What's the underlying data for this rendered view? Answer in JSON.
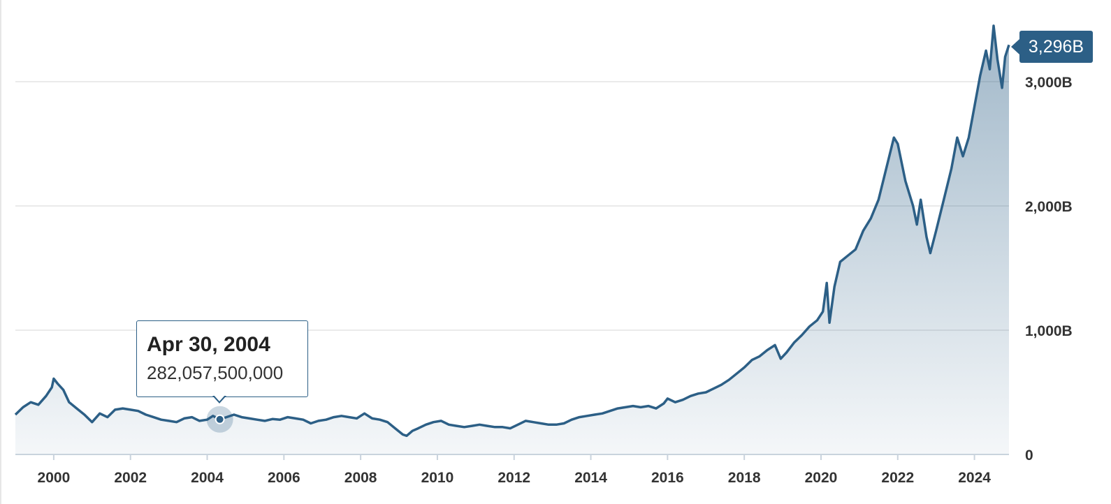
{
  "chart_data": {
    "type": "area",
    "x_unit": "year",
    "xlim": [
      1999.0,
      2024.9
    ],
    "ylim": [
      0,
      3400
    ],
    "y_unit": "B",
    "y_ticks": [
      {
        "value": 0,
        "label": "0"
      },
      {
        "value": 1000,
        "label": "1,000B"
      },
      {
        "value": 2000,
        "label": "2,000B"
      },
      {
        "value": 3000,
        "label": "3,000B"
      }
    ],
    "x_ticks": [
      {
        "value": 2000,
        "label": "2000"
      },
      {
        "value": 2002,
        "label": "2002"
      },
      {
        "value": 2004,
        "label": "2004"
      },
      {
        "value": 2006,
        "label": "2006"
      },
      {
        "value": 2008,
        "label": "2008"
      },
      {
        "value": 2010,
        "label": "2010"
      },
      {
        "value": 2012,
        "label": "2012"
      },
      {
        "value": 2014,
        "label": "2014"
      },
      {
        "value": 2016,
        "label": "2016"
      },
      {
        "value": 2018,
        "label": "2018"
      },
      {
        "value": 2020,
        "label": "2020"
      },
      {
        "value": 2022,
        "label": "2022"
      },
      {
        "value": 2024,
        "label": "2024"
      }
    ],
    "grid": true,
    "series": [
      {
        "color": "#2c5f86",
        "fill_color": "#2c5f86",
        "points": [
          [
            1999.0,
            320
          ],
          [
            1999.2,
            380
          ],
          [
            1999.4,
            420
          ],
          [
            1999.6,
            400
          ],
          [
            1999.8,
            470
          ],
          [
            1999.95,
            540
          ],
          [
            2000.0,
            610
          ],
          [
            2000.1,
            570
          ],
          [
            2000.25,
            520
          ],
          [
            2000.4,
            420
          ],
          [
            2000.6,
            370
          ],
          [
            2000.8,
            320
          ],
          [
            2001.0,
            260
          ],
          [
            2001.2,
            330
          ],
          [
            2001.4,
            300
          ],
          [
            2001.6,
            360
          ],
          [
            2001.8,
            370
          ],
          [
            2002.0,
            360
          ],
          [
            2002.2,
            350
          ],
          [
            2002.4,
            320
          ],
          [
            2002.6,
            300
          ],
          [
            2002.8,
            280
          ],
          [
            2003.0,
            270
          ],
          [
            2003.2,
            260
          ],
          [
            2003.4,
            290
          ],
          [
            2003.6,
            300
          ],
          [
            2003.8,
            270
          ],
          [
            2004.0,
            280
          ],
          [
            2004.15,
            310
          ],
          [
            2004.33,
            282.0575
          ],
          [
            2004.5,
            300
          ],
          [
            2004.7,
            320
          ],
          [
            2004.9,
            300
          ],
          [
            2005.1,
            290
          ],
          [
            2005.3,
            280
          ],
          [
            2005.5,
            270
          ],
          [
            2005.7,
            285
          ],
          [
            2005.9,
            280
          ],
          [
            2006.1,
            300
          ],
          [
            2006.3,
            290
          ],
          [
            2006.5,
            280
          ],
          [
            2006.7,
            250
          ],
          [
            2006.9,
            270
          ],
          [
            2007.1,
            280
          ],
          [
            2007.3,
            300
          ],
          [
            2007.5,
            310
          ],
          [
            2007.7,
            300
          ],
          [
            2007.9,
            290
          ],
          [
            2008.0,
            310
          ],
          [
            2008.1,
            330
          ],
          [
            2008.3,
            290
          ],
          [
            2008.5,
            280
          ],
          [
            2008.7,
            260
          ],
          [
            2008.9,
            210
          ],
          [
            2009.1,
            160
          ],
          [
            2009.2,
            150
          ],
          [
            2009.35,
            190
          ],
          [
            2009.5,
            210
          ],
          [
            2009.7,
            240
          ],
          [
            2009.9,
            260
          ],
          [
            2010.1,
            270
          ],
          [
            2010.3,
            240
          ],
          [
            2010.5,
            230
          ],
          [
            2010.7,
            220
          ],
          [
            2010.9,
            230
          ],
          [
            2011.1,
            240
          ],
          [
            2011.3,
            230
          ],
          [
            2011.5,
            220
          ],
          [
            2011.7,
            220
          ],
          [
            2011.9,
            210
          ],
          [
            2012.1,
            240
          ],
          [
            2012.3,
            270
          ],
          [
            2012.5,
            260
          ],
          [
            2012.7,
            250
          ],
          [
            2012.9,
            240
          ],
          [
            2013.1,
            240
          ],
          [
            2013.3,
            250
          ],
          [
            2013.5,
            280
          ],
          [
            2013.7,
            300
          ],
          [
            2013.9,
            310
          ],
          [
            2014.1,
            320
          ],
          [
            2014.3,
            330
          ],
          [
            2014.5,
            350
          ],
          [
            2014.7,
            370
          ],
          [
            2014.9,
            380
          ],
          [
            2015.1,
            390
          ],
          [
            2015.3,
            380
          ],
          [
            2015.5,
            390
          ],
          [
            2015.7,
            370
          ],
          [
            2015.9,
            410
          ],
          [
            2016.0,
            450
          ],
          [
            2016.2,
            420
          ],
          [
            2016.4,
            440
          ],
          [
            2016.6,
            470
          ],
          [
            2016.8,
            490
          ],
          [
            2017.0,
            500
          ],
          [
            2017.2,
            530
          ],
          [
            2017.4,
            560
          ],
          [
            2017.6,
            600
          ],
          [
            2017.8,
            650
          ],
          [
            2018.0,
            700
          ],
          [
            2018.2,
            760
          ],
          [
            2018.4,
            790
          ],
          [
            2018.6,
            840
          ],
          [
            2018.8,
            880
          ],
          [
            2018.95,
            770
          ],
          [
            2019.1,
            820
          ],
          [
            2019.3,
            900
          ],
          [
            2019.5,
            960
          ],
          [
            2019.7,
            1030
          ],
          [
            2019.9,
            1080
          ],
          [
            2020.05,
            1150
          ],
          [
            2020.15,
            1380
          ],
          [
            2020.22,
            1060
          ],
          [
            2020.35,
            1350
          ],
          [
            2020.5,
            1550
          ],
          [
            2020.7,
            1600
          ],
          [
            2020.9,
            1650
          ],
          [
            2021.1,
            1800
          ],
          [
            2021.3,
            1900
          ],
          [
            2021.5,
            2050
          ],
          [
            2021.7,
            2300
          ],
          [
            2021.9,
            2550
          ],
          [
            2022.0,
            2500
          ],
          [
            2022.2,
            2200
          ],
          [
            2022.4,
            2000
          ],
          [
            2022.5,
            1850
          ],
          [
            2022.6,
            2050
          ],
          [
            2022.75,
            1750
          ],
          [
            2022.85,
            1620
          ],
          [
            2023.0,
            1800
          ],
          [
            2023.2,
            2050
          ],
          [
            2023.4,
            2300
          ],
          [
            2023.55,
            2550
          ],
          [
            2023.7,
            2400
          ],
          [
            2023.85,
            2550
          ],
          [
            2024.0,
            2800
          ],
          [
            2024.15,
            3050
          ],
          [
            2024.3,
            3250
          ],
          [
            2024.4,
            3100
          ],
          [
            2024.5,
            3450
          ],
          [
            2024.6,
            3180
          ],
          [
            2024.72,
            2950
          ],
          [
            2024.8,
            3200
          ],
          [
            2024.9,
            3296
          ]
        ]
      }
    ],
    "tooltip": {
      "x": 2004.33,
      "date": "Apr 30, 2004",
      "value": "282,057,500,000"
    },
    "last_value": {
      "value": 3296,
      "label": "3,296B"
    }
  }
}
